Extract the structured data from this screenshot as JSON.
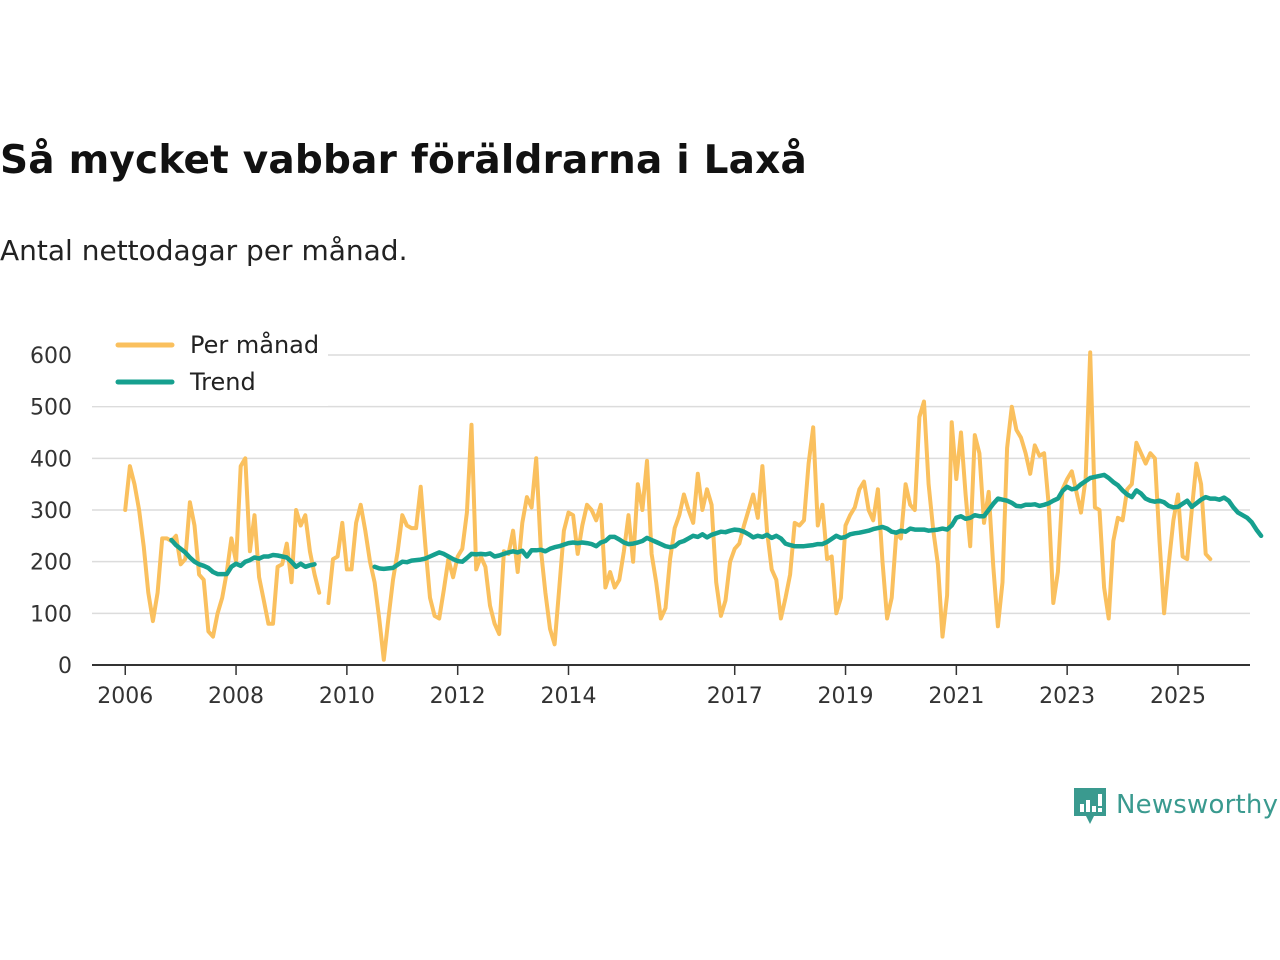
{
  "title": "Så mycket vabbar föräldrarna i Laxå",
  "subtitle": "Antal nettodagar per månad.",
  "brand": {
    "name": "Newsworthy",
    "icon": "newsworthy-logo-icon",
    "color": "#2a9d8f"
  },
  "colors": {
    "monthly": "#fac05e",
    "trend": "#16a08f",
    "grid": "#dcdcdc",
    "axis": "#333333"
  },
  "chart_data": {
    "type": "line",
    "title": "Så mycket vabbar föräldrarna i Laxå",
    "subtitle": "Antal nettodagar per månad.",
    "xlabel": "",
    "ylabel": "",
    "ylim": [
      0,
      600
    ],
    "xlim": [
      2005.4,
      2026.3
    ],
    "yticks": [
      0,
      100,
      200,
      300,
      400,
      500,
      600
    ],
    "xticks": [
      2006,
      2008,
      2010,
      2012,
      2014,
      2017,
      2019,
      2021,
      2023,
      2025
    ],
    "grid": true,
    "legend": "top-left",
    "series": [
      {
        "name": "Per månad",
        "color": "#fac05e",
        "x_start": 2006.0,
        "x_step": 0.0833333,
        "values": [
          300,
          385,
          350,
          300,
          230,
          140,
          85,
          140,
          245,
          245,
          240,
          250,
          195,
          205,
          315,
          270,
          175,
          165,
          65,
          55,
          100,
          130,
          180,
          245,
          200,
          385,
          400,
          220,
          290,
          170,
          125,
          80,
          80,
          190,
          195,
          235,
          160,
          300,
          270,
          290,
          220,
          175,
          140,
          null,
          120,
          205,
          210,
          275,
          185,
          185,
          275,
          310,
          260,
          200,
          160,
          90,
          10,
          90,
          165,
          220,
          290,
          270,
          265,
          265,
          345,
          230,
          130,
          95,
          90,
          145,
          205,
          170,
          210,
          225,
          295,
          465,
          185,
          210,
          190,
          115,
          80,
          60,
          220,
          215,
          260,
          180,
          275,
          325,
          305,
          400,
          225,
          140,
          70,
          40,
          150,
          260,
          295,
          290,
          215,
          270,
          310,
          300,
          280,
          310,
          150,
          180,
          150,
          165,
          220,
          290,
          200,
          350,
          300,
          395,
          215,
          160,
          90,
          110,
          205,
          265,
          290,
          330,
          300,
          275,
          370,
          300,
          340,
          310,
          160,
          95,
          125,
          200,
          225,
          235,
          270,
          300,
          330,
          285,
          385,
          260,
          185,
          165,
          90,
          130,
          175,
          275,
          270,
          280,
          390,
          460,
          270,
          310,
          205,
          210,
          100,
          130,
          270,
          290,
          305,
          340,
          355,
          300,
          280,
          340,
          200,
          90,
          130,
          255,
          245,
          350,
          310,
          300,
          480,
          510,
          350,
          260,
          195,
          55,
          135,
          470,
          360,
          450,
          330,
          230,
          445,
          410,
          275,
          335,
          190,
          75,
          160,
          420,
          500,
          455,
          440,
          410,
          370,
          425,
          405,
          410,
          310,
          120,
          180,
          340,
          360,
          375,
          335,
          295,
          360,
          605,
          305,
          300,
          150,
          90,
          240,
          285,
          280,
          340,
          350,
          430,
          410,
          390,
          410,
          400,
          240,
          100,
          195,
          280,
          330,
          210,
          205,
          300,
          390,
          350,
          215,
          205
        ]
      },
      {
        "name": "Trend",
        "color": "#16a08f",
        "x_start": 2006.833,
        "x_step": 0.0833333,
        "values": [
          242,
          232,
          225,
          218,
          208,
          200,
          195,
          192,
          188,
          180,
          176,
          176,
          176,
          190,
          196,
          192,
          200,
          203,
          208,
          206,
          210,
          210,
          213,
          212,
          210,
          208,
          200,
          190,
          196,
          190,
          193,
          195,
          null,
          null,
          null,
          null,
          null,
          null,
          null,
          null,
          null,
          null,
          null,
          null,
          190,
          187,
          186,
          187,
          188,
          194,
          200,
          199,
          202,
          203,
          204,
          206,
          210,
          214,
          218,
          215,
          210,
          205,
          201,
          200,
          207,
          215,
          214,
          215,
          214,
          216,
          210,
          212,
          215,
          218,
          220,
          218,
          221,
          210,
          222,
          222,
          223,
          220,
          225,
          228,
          230,
          233,
          236,
          237,
          236,
          237,
          236,
          234,
          230,
          237,
          240,
          248,
          248,
          243,
          237,
          234,
          235,
          237,
          240,
          246,
          242,
          238,
          234,
          230,
          228,
          230,
          237,
          240,
          245,
          250,
          248,
          253,
          247,
          252,
          255,
          258,
          257,
          260,
          262,
          261,
          258,
          253,
          247,
          250,
          248,
          252,
          246,
          250,
          245,
          235,
          232,
          230,
          230,
          230,
          231,
          232,
          234,
          234,
          238,
          244,
          250,
          246,
          248,
          253,
          255,
          256,
          258,
          260,
          263,
          265,
          267,
          264,
          258,
          256,
          260,
          258,
          264,
          262,
          262,
          262,
          260,
          261,
          262,
          264,
          262,
          270,
          285,
          288,
          283,
          285,
          290,
          288,
          288,
          300,
          312,
          322,
          320,
          318,
          314,
          308,
          307,
          310,
          310,
          311,
          308,
          310,
          313,
          318,
          322,
          337,
          345,
          340,
          342,
          350,
          356,
          362,
          364,
          366,
          368,
          362,
          354,
          348,
          338,
          330,
          325,
          338,
          332,
          322,
          318,
          316,
          318,
          315,
          308,
          305,
          306,
          312,
          318,
          306,
          313,
          320,
          325,
          322,
          322,
          320,
          324,
          318,
          305,
          295,
          290,
          285,
          276,
          262,
          250
        ]
      }
    ]
  }
}
